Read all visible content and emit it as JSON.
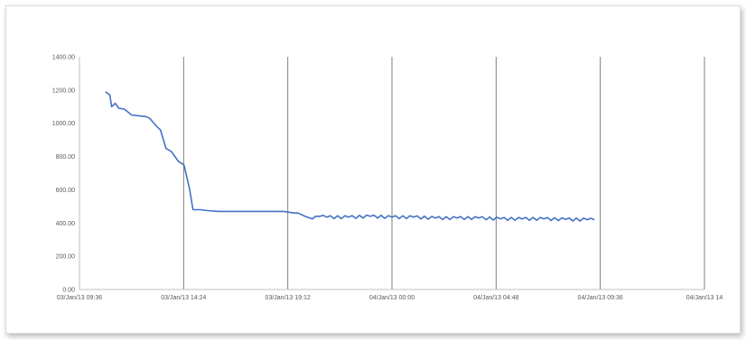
{
  "chart_data": {
    "type": "line",
    "title": "",
    "xlabel": "",
    "ylabel": "",
    "ylim": [
      0,
      1400
    ],
    "y_ticks": [
      0,
      200,
      400,
      600,
      800,
      1000,
      1200,
      1400
    ],
    "y_tick_labels": [
      "0.00",
      "200.00",
      "400.00",
      "600.00",
      "800.00",
      "1000.00",
      "1200.00",
      "1400.00"
    ],
    "x_ticks": [
      "03/Jan/13 09:36",
      "03/Jan/13 14:24",
      "03/Jan/13 19:12",
      "04/Jan/13 00:00",
      "04/Jan/13 04:48",
      "04/Jan/13 09:36",
      "04/Jan/13 14"
    ],
    "grid": "vertical",
    "line_color": "#4472c4",
    "series": [
      {
        "x": [
          "03/Jan/13 10:48",
          "03/Jan/13 11:00",
          "03/Jan/13 11:05",
          "03/Jan/13 11:15",
          "03/Jan/13 11:25",
          "03/Jan/13 11:40",
          "03/Jan/13 12:00",
          "03/Jan/13 12:20",
          "03/Jan/13 12:40",
          "03/Jan/13 12:50",
          "03/Jan/13 13:10",
          "03/Jan/13 13:20",
          "03/Jan/13 13:35",
          "03/Jan/13 13:50",
          "03/Jan/13 14:10",
          "03/Jan/13 14:25",
          "03/Jan/13 14:40",
          "03/Jan/13 14:50",
          "03/Jan/13 15:10",
          "03/Jan/13 15:30",
          "03/Jan/13 16:00",
          "03/Jan/13 17:00",
          "03/Jan/13 18:00",
          "03/Jan/13 19:00",
          "03/Jan/13 19:30",
          "03/Jan/13 19:40",
          "03/Jan/13 20:00",
          "03/Jan/13 20:20",
          "03/Jan/13 20:40",
          "03/Jan/13 21:00",
          "03/Jan/13 22:00",
          "03/Jan/13 23:00",
          "04/Jan/13 00:00",
          "04/Jan/13 01:00",
          "04/Jan/13 02:00",
          "04/Jan/13 03:00",
          "04/Jan/13 04:00",
          "04/Jan/13 05:00",
          "04/Jan/13 06:00",
          "04/Jan/13 07:00",
          "04/Jan/13 08:00",
          "04/Jan/13 09:00",
          "04/Jan/13 09:20"
        ],
        "y": [
          1190,
          1170,
          1100,
          1120,
          1090,
          1085,
          1050,
          1045,
          1040,
          1030,
          980,
          960,
          850,
          830,
          770,
          750,
          610,
          480,
          480,
          475,
          470,
          470,
          470,
          470,
          460,
          460,
          440,
          425,
          440,
          435,
          435,
          440,
          435,
          435,
          430,
          430,
          430,
          425,
          425,
          425,
          422,
          420,
          420
        ]
      }
    ]
  }
}
